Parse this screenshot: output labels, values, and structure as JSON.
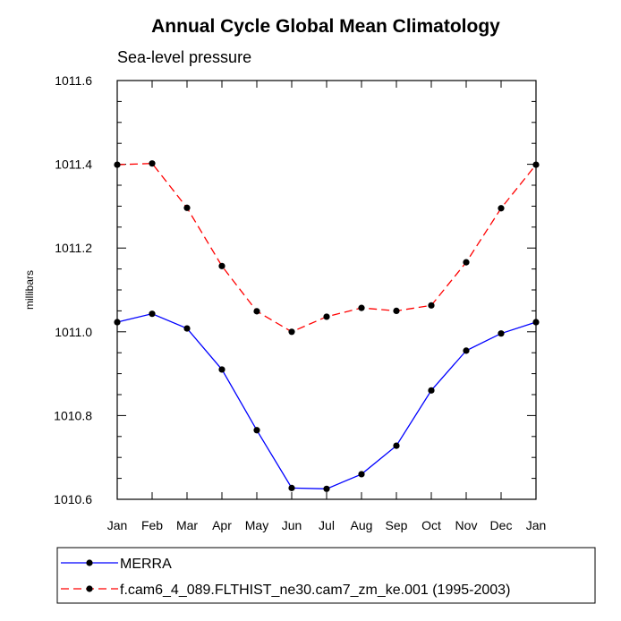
{
  "chart_data": {
    "type": "line",
    "title": "Annual Cycle Global Mean Climatology",
    "subtitle": "Sea-level pressure",
    "xlabel": "",
    "ylabel": "millibars",
    "categories": [
      "Jan",
      "Feb",
      "Mar",
      "Apr",
      "May",
      "Jun",
      "Jul",
      "Aug",
      "Sep",
      "Oct",
      "Nov",
      "Dec",
      "Jan"
    ],
    "ylim": [
      1010.6,
      1011.6
    ],
    "yticks": [
      1010.6,
      1010.8,
      1011.0,
      1011.2,
      1011.4,
      1011.6
    ],
    "ytick_labels": [
      "1010.6",
      "1010.8",
      "1011.0",
      "1011.2",
      "1011.4",
      "1011.6"
    ],
    "series": [
      {
        "name": "MERRA",
        "color": "#0000ff",
        "dash": "solid",
        "values": [
          1011.023,
          1011.043,
          1011.008,
          1010.91,
          1010.765,
          1010.627,
          1010.625,
          1010.66,
          1010.728,
          1010.86,
          1010.955,
          1010.996,
          1011.023
        ]
      },
      {
        "name": "f.cam6_4_089.FLTHIST_ne30.cam7_zm_ke.001 (1995-2003)",
        "color": "#ff0000",
        "dash": "dashed",
        "values": [
          1011.399,
          1011.402,
          1011.296,
          1011.157,
          1011.049,
          1011.0,
          1011.036,
          1011.057,
          1011.05,
          1011.063,
          1011.166,
          1011.295,
          1011.399
        ]
      }
    ],
    "marker_color": "#000000",
    "legend": "bottom"
  }
}
